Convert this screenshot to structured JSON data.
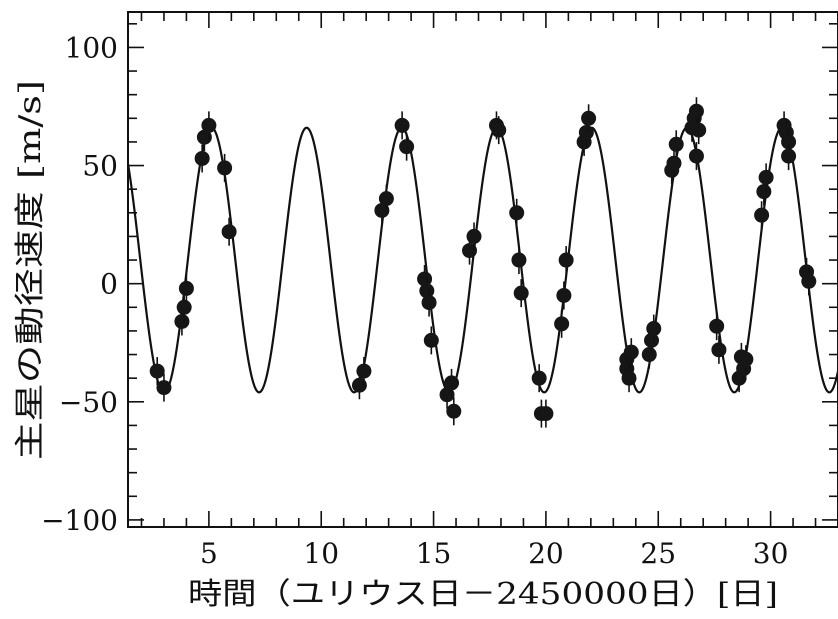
{
  "chart_data": {
    "type": "scatter",
    "xlabel": "時間（ユリウス日－2450000日）[日]",
    "ylabel": "主星の動径速度 [m/s]",
    "xlim": [
      1.4,
      33
    ],
    "ylim": [
      -103,
      115
    ],
    "x_ticks": [
      5,
      10,
      15,
      20,
      25,
      30
    ],
    "x_tick_labels": [
      "5",
      "10",
      "15",
      "20",
      "25",
      "30"
    ],
    "y_ticks": [
      100,
      50,
      0,
      -50,
      -100
    ],
    "y_tick_labels": [
      "100",
      "50",
      "0",
      "−50",
      "−100"
    ],
    "grid": false,
    "fit_curve": {
      "amplitude": 56,
      "offset": 10,
      "period": 4.23,
      "peak_at": 9.35
    },
    "series": [
      {
        "marker": "filled-circle",
        "points": [
          [
            2.7,
            -37
          ],
          [
            3.0,
            -44
          ],
          [
            3.8,
            -16
          ],
          [
            3.9,
            -10
          ],
          [
            4.0,
            -2
          ],
          [
            4.7,
            53
          ],
          [
            4.8,
            62
          ],
          [
            5.0,
            67
          ],
          [
            5.7,
            49
          ],
          [
            5.9,
            22
          ],
          [
            11.7,
            -43
          ],
          [
            11.9,
            -37
          ],
          [
            12.7,
            31
          ],
          [
            12.9,
            36
          ],
          [
            13.6,
            67
          ],
          [
            13.8,
            58
          ],
          [
            14.6,
            2
          ],
          [
            14.7,
            -3
          ],
          [
            14.8,
            -8
          ],
          [
            14.9,
            -24
          ],
          [
            15.6,
            -47
          ],
          [
            15.8,
            -42
          ],
          [
            15.9,
            -54
          ],
          [
            16.6,
            14
          ],
          [
            16.8,
            20
          ],
          [
            17.8,
            67
          ],
          [
            17.9,
            65
          ],
          [
            18.7,
            30
          ],
          [
            18.8,
            10
          ],
          [
            18.9,
            -4
          ],
          [
            19.7,
            -40
          ],
          [
            19.8,
            -55
          ],
          [
            20.0,
            -55
          ],
          [
            20.7,
            -17
          ],
          [
            20.8,
            -5
          ],
          [
            20.9,
            10
          ],
          [
            21.7,
            60
          ],
          [
            21.8,
            64
          ],
          [
            21.9,
            70
          ],
          [
            23.6,
            -32
          ],
          [
            23.6,
            -36
          ],
          [
            23.7,
            -40
          ],
          [
            23.8,
            -29
          ],
          [
            24.6,
            -30
          ],
          [
            24.7,
            -24
          ],
          [
            24.8,
            -19
          ],
          [
            25.6,
            48
          ],
          [
            25.7,
            51
          ],
          [
            25.8,
            59
          ],
          [
            26.5,
            66
          ],
          [
            26.6,
            70
          ],
          [
            26.7,
            73
          ],
          [
            26.8,
            65
          ],
          [
            26.7,
            54
          ],
          [
            27.6,
            -18
          ],
          [
            27.7,
            -28
          ],
          [
            28.6,
            -40
          ],
          [
            28.7,
            -31
          ],
          [
            28.8,
            -36
          ],
          [
            28.9,
            -32
          ],
          [
            29.6,
            29
          ],
          [
            29.7,
            39
          ],
          [
            29.8,
            45
          ],
          [
            30.6,
            67
          ],
          [
            30.7,
            64
          ],
          [
            30.8,
            60
          ],
          [
            30.8,
            54
          ],
          [
            31.6,
            5
          ],
          [
            31.7,
            1
          ]
        ]
      }
    ]
  }
}
